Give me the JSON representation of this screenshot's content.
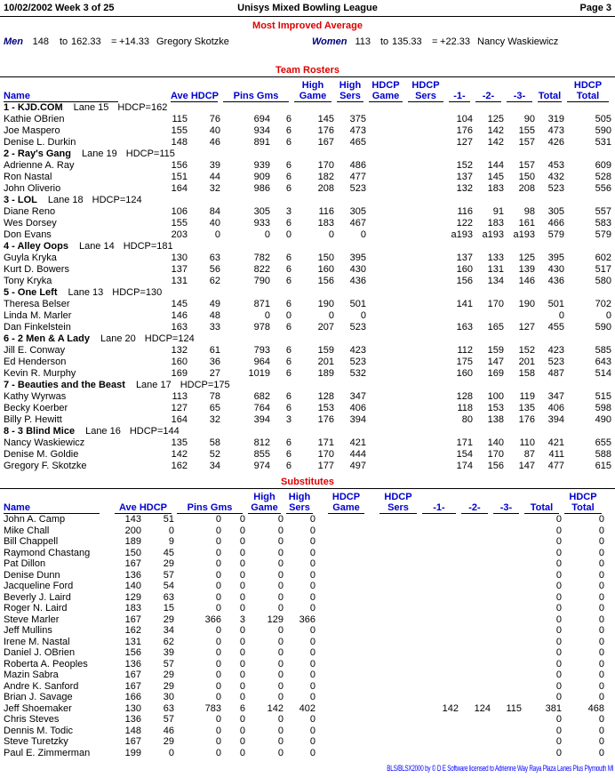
{
  "page_header": {
    "date": "10/02/2002",
    "week": "Week 3 of 25",
    "title": "Unisys Mixed Bowling League",
    "page": "Page 3"
  },
  "most_improved": {
    "title": "Most Improved Average",
    "men_label": "Men",
    "men_from": "148",
    "men_to_word": "to",
    "men_to": "162.33",
    "men_eq": "=",
    "men_gain": "+14.33",
    "men_name": "Gregory Skotzke",
    "women_label": "Women",
    "women_from": "113",
    "women_to_word": "to",
    "women_to": "135.33",
    "women_eq": "=",
    "women_gain": "+22.33",
    "women_name": "Nancy Waskiewicz"
  },
  "columns": {
    "name": "Name",
    "ave_hdcp": "Ave HDCP",
    "pins_gms": "Pins Gms",
    "high": "High",
    "hdcp": "HDCP",
    "game": "Game",
    "sers": "Sers",
    "g1": "-1-",
    "g2": "-2-",
    "g3": "-3-",
    "total": "Total"
  },
  "team_rosters": {
    "title": "Team Rosters",
    "teams": [
      {
        "name": "1 - KJD.COM",
        "lane": "Lane 15",
        "hdcp": "HDCP=162",
        "players": [
          [
            "Kathie OBrien",
            "115",
            "76",
            "694",
            "6",
            "145",
            "375",
            "",
            "",
            "104",
            "125",
            "90",
            "319",
            "505"
          ],
          [
            "Joe Maspero",
            "155",
            "40",
            "934",
            "6",
            "176",
            "473",
            "",
            "",
            "176",
            "142",
            "155",
            "473",
            "590"
          ],
          [
            "Denise L. Durkin",
            "148",
            "46",
            "891",
            "6",
            "167",
            "465",
            "",
            "",
            "127",
            "142",
            "157",
            "426",
            "531"
          ]
        ]
      },
      {
        "name": "2 - Ray's Gang",
        "lane": "Lane 19",
        "hdcp": "HDCP=115",
        "players": [
          [
            "Adrienne A. Ray",
            "156",
            "39",
            "939",
            "6",
            "170",
            "486",
            "",
            "",
            "152",
            "144",
            "157",
            "453",
            "609"
          ],
          [
            "Ron Nastal",
            "151",
            "44",
            "909",
            "6",
            "182",
            "477",
            "",
            "",
            "137",
            "145",
            "150",
            "432",
            "528"
          ],
          [
            "John Oliverio",
            "164",
            "32",
            "986",
            "6",
            "208",
            "523",
            "",
            "",
            "132",
            "183",
            "208",
            "523",
            "556"
          ]
        ]
      },
      {
        "name": "3 - LOL",
        "lane": "Lane 18",
        "hdcp": "HDCP=124",
        "players": [
          [
            "Diane Reno",
            "106",
            "84",
            "305",
            "3",
            "116",
            "305",
            "",
            "",
            "116",
            "91",
            "98",
            "305",
            "557"
          ],
          [
            "Wes Dorsey",
            "155",
            "40",
            "933",
            "6",
            "183",
            "467",
            "",
            "",
            "122",
            "183",
            "161",
            "466",
            "583"
          ],
          [
            "Don Evans",
            "203",
            "0",
            "0",
            "0",
            "0",
            "0",
            "",
            "",
            "a193",
            "a193",
            "a193",
            "579",
            "579"
          ]
        ]
      },
      {
        "name": "4 - Alley Oops",
        "lane": "Lane 14",
        "hdcp": "HDCP=181",
        "players": [
          [
            "Guyla Kryka",
            "130",
            "63",
            "782",
            "6",
            "150",
            "395",
            "",
            "",
            "137",
            "133",
            "125",
            "395",
            "602"
          ],
          [
            "Kurt D. Bowers",
            "137",
            "56",
            "822",
            "6",
            "160",
            "430",
            "",
            "",
            "160",
            "131",
            "139",
            "430",
            "517"
          ],
          [
            "Tony Kryka",
            "131",
            "62",
            "790",
            "6",
            "156",
            "436",
            "",
            "",
            "156",
            "134",
            "146",
            "436",
            "580"
          ]
        ]
      },
      {
        "name": "5 - One Left",
        "lane": "Lane 13",
        "hdcp": "HDCP=130",
        "players": [
          [
            "Theresa Belser",
            "145",
            "49",
            "871",
            "6",
            "190",
            "501",
            "",
            "",
            "141",
            "170",
            "190",
            "501",
            "702"
          ],
          [
            "Linda M. Marler",
            "146",
            "48",
            "0",
            "0",
            "0",
            "0",
            "",
            "",
            "",
            "",
            "",
            "0",
            "0"
          ],
          [
            "Dan Finkelstein",
            "163",
            "33",
            "978",
            "6",
            "207",
            "523",
            "",
            "",
            "163",
            "165",
            "127",
            "455",
            "590"
          ]
        ]
      },
      {
        "name": "6 - 2 Men & A Lady",
        "lane": "Lane 20",
        "hdcp": "HDCP=124",
        "players": [
          [
            "Jill E. Conway",
            "132",
            "61",
            "793",
            "6",
            "159",
            "423",
            "",
            "",
            "112",
            "159",
            "152",
            "423",
            "585"
          ],
          [
            "Ed Henderson",
            "160",
            "36",
            "964",
            "6",
            "201",
            "523",
            "",
            "",
            "175",
            "147",
            "201",
            "523",
            "643"
          ],
          [
            "Kevin R. Murphy",
            "169",
            "27",
            "1019",
            "6",
            "189",
            "532",
            "",
            "",
            "160",
            "169",
            "158",
            "487",
            "514"
          ]
        ]
      },
      {
        "name": "7 - Beauties and the Beast",
        "lane": "Lane 17",
        "hdcp": "HDCP=175",
        "players": [
          [
            "Kathy Wyrwas",
            "113",
            "78",
            "682",
            "6",
            "128",
            "347",
            "",
            "",
            "128",
            "100",
            "119",
            "347",
            "515"
          ],
          [
            "Becky Koerber",
            "127",
            "65",
            "764",
            "6",
            "153",
            "406",
            "",
            "",
            "118",
            "153",
            "135",
            "406",
            "598"
          ],
          [
            "Billy P. Hewitt",
            "164",
            "32",
            "394",
            "3",
            "176",
            "394",
            "",
            "",
            "80",
            "138",
            "176",
            "394",
            "490"
          ]
        ]
      },
      {
        "name": "8 - 3 Blind Mice",
        "lane": "Lane 16",
        "hdcp": "HDCP=144",
        "players": [
          [
            "Nancy Waskiewicz",
            "135",
            "58",
            "812",
            "6",
            "171",
            "421",
            "",
            "",
            "171",
            "140",
            "110",
            "421",
            "655"
          ],
          [
            "Denise M. Goldie",
            "142",
            "52",
            "855",
            "6",
            "170",
            "444",
            "",
            "",
            "154",
            "170",
            "87",
            "411",
            "588"
          ],
          [
            "Gregory F. Skotzke",
            "162",
            "34",
            "974",
            "6",
            "177",
            "497",
            "",
            "",
            "174",
            "156",
            "147",
            "477",
            "615"
          ]
        ]
      }
    ]
  },
  "substitutes": {
    "title": "Substitutes",
    "players": [
      [
        "John A. Camp",
        "143",
        "51",
        "0",
        "0",
        "0",
        "0",
        "",
        "",
        "",
        "",
        "",
        "0",
        "0"
      ],
      [
        "Mike Chall",
        "200",
        "0",
        "0",
        "0",
        "0",
        "0",
        "",
        "",
        "",
        "",
        "",
        "0",
        "0"
      ],
      [
        "Bill Chappell",
        "189",
        "9",
        "0",
        "0",
        "0",
        "0",
        "",
        "",
        "",
        "",
        "",
        "0",
        "0"
      ],
      [
        "Raymond Chastang",
        "150",
        "45",
        "0",
        "0",
        "0",
        "0",
        "",
        "",
        "",
        "",
        "",
        "0",
        "0"
      ],
      [
        "Pat Dillon",
        "167",
        "29",
        "0",
        "0",
        "0",
        "0",
        "",
        "",
        "",
        "",
        "",
        "0",
        "0"
      ],
      [
        "Denise Dunn",
        "136",
        "57",
        "0",
        "0",
        "0",
        "0",
        "",
        "",
        "",
        "",
        "",
        "0",
        "0"
      ],
      [
        "Jacqueline Ford",
        "140",
        "54",
        "0",
        "0",
        "0",
        "0",
        "",
        "",
        "",
        "",
        "",
        "0",
        "0"
      ],
      [
        "Beverly J. Laird",
        "129",
        "63",
        "0",
        "0",
        "0",
        "0",
        "",
        "",
        "",
        "",
        "",
        "0",
        "0"
      ],
      [
        "Roger N. Laird",
        "183",
        "15",
        "0",
        "0",
        "0",
        "0",
        "",
        "",
        "",
        "",
        "",
        "0",
        "0"
      ],
      [
        "Steve Marler",
        "167",
        "29",
        "366",
        "3",
        "129",
        "366",
        "",
        "",
        "",
        "",
        "",
        "0",
        "0"
      ],
      [
        "Jeff Mullins",
        "162",
        "34",
        "0",
        "0",
        "0",
        "0",
        "",
        "",
        "",
        "",
        "",
        "0",
        "0"
      ],
      [
        "Irene M. Nastal",
        "131",
        "62",
        "0",
        "0",
        "0",
        "0",
        "",
        "",
        "",
        "",
        "",
        "0",
        "0"
      ],
      [
        "Daniel J. OBrien",
        "156",
        "39",
        "0",
        "0",
        "0",
        "0",
        "",
        "",
        "",
        "",
        "",
        "0",
        "0"
      ],
      [
        "Roberta A. Peoples",
        "136",
        "57",
        "0",
        "0",
        "0",
        "0",
        "",
        "",
        "",
        "",
        "",
        "0",
        "0"
      ],
      [
        "Mazin Sabra",
        "167",
        "29",
        "0",
        "0",
        "0",
        "0",
        "",
        "",
        "",
        "",
        "",
        "0",
        "0"
      ],
      [
        "Andre K. Sanford",
        "167",
        "29",
        "0",
        "0",
        "0",
        "0",
        "",
        "",
        "",
        "",
        "",
        "0",
        "0"
      ],
      [
        "Brian J. Savage",
        "166",
        "30",
        "0",
        "0",
        "0",
        "0",
        "",
        "",
        "",
        "",
        "",
        "0",
        "0"
      ],
      [
        "Jeff Shoemaker",
        "130",
        "63",
        "783",
        "6",
        "142",
        "402",
        "",
        "",
        "142",
        "124",
        "115",
        "381",
        "468"
      ],
      [
        "Chris Steves",
        "136",
        "57",
        "0",
        "0",
        "0",
        "0",
        "",
        "",
        "",
        "",
        "",
        "0",
        "0"
      ],
      [
        "Dennis M. Todic",
        "148",
        "46",
        "0",
        "0",
        "0",
        "0",
        "",
        "",
        "",
        "",
        "",
        "0",
        "0"
      ],
      [
        "Steve Turetzky",
        "167",
        "29",
        "0",
        "0",
        "0",
        "0",
        "",
        "",
        "",
        "",
        "",
        "0",
        "0"
      ],
      [
        "Paul E. Zimmerman",
        "199",
        "0",
        "0",
        "0",
        "0",
        "0",
        "",
        "",
        "",
        "",
        "",
        "0",
        "0"
      ]
    ]
  },
  "footer": {
    "text": "BLS/BLSX2000 by © D E Software licensed to Adrienne Way Raya Plaza Lanes Plus Plymouth MI"
  }
}
